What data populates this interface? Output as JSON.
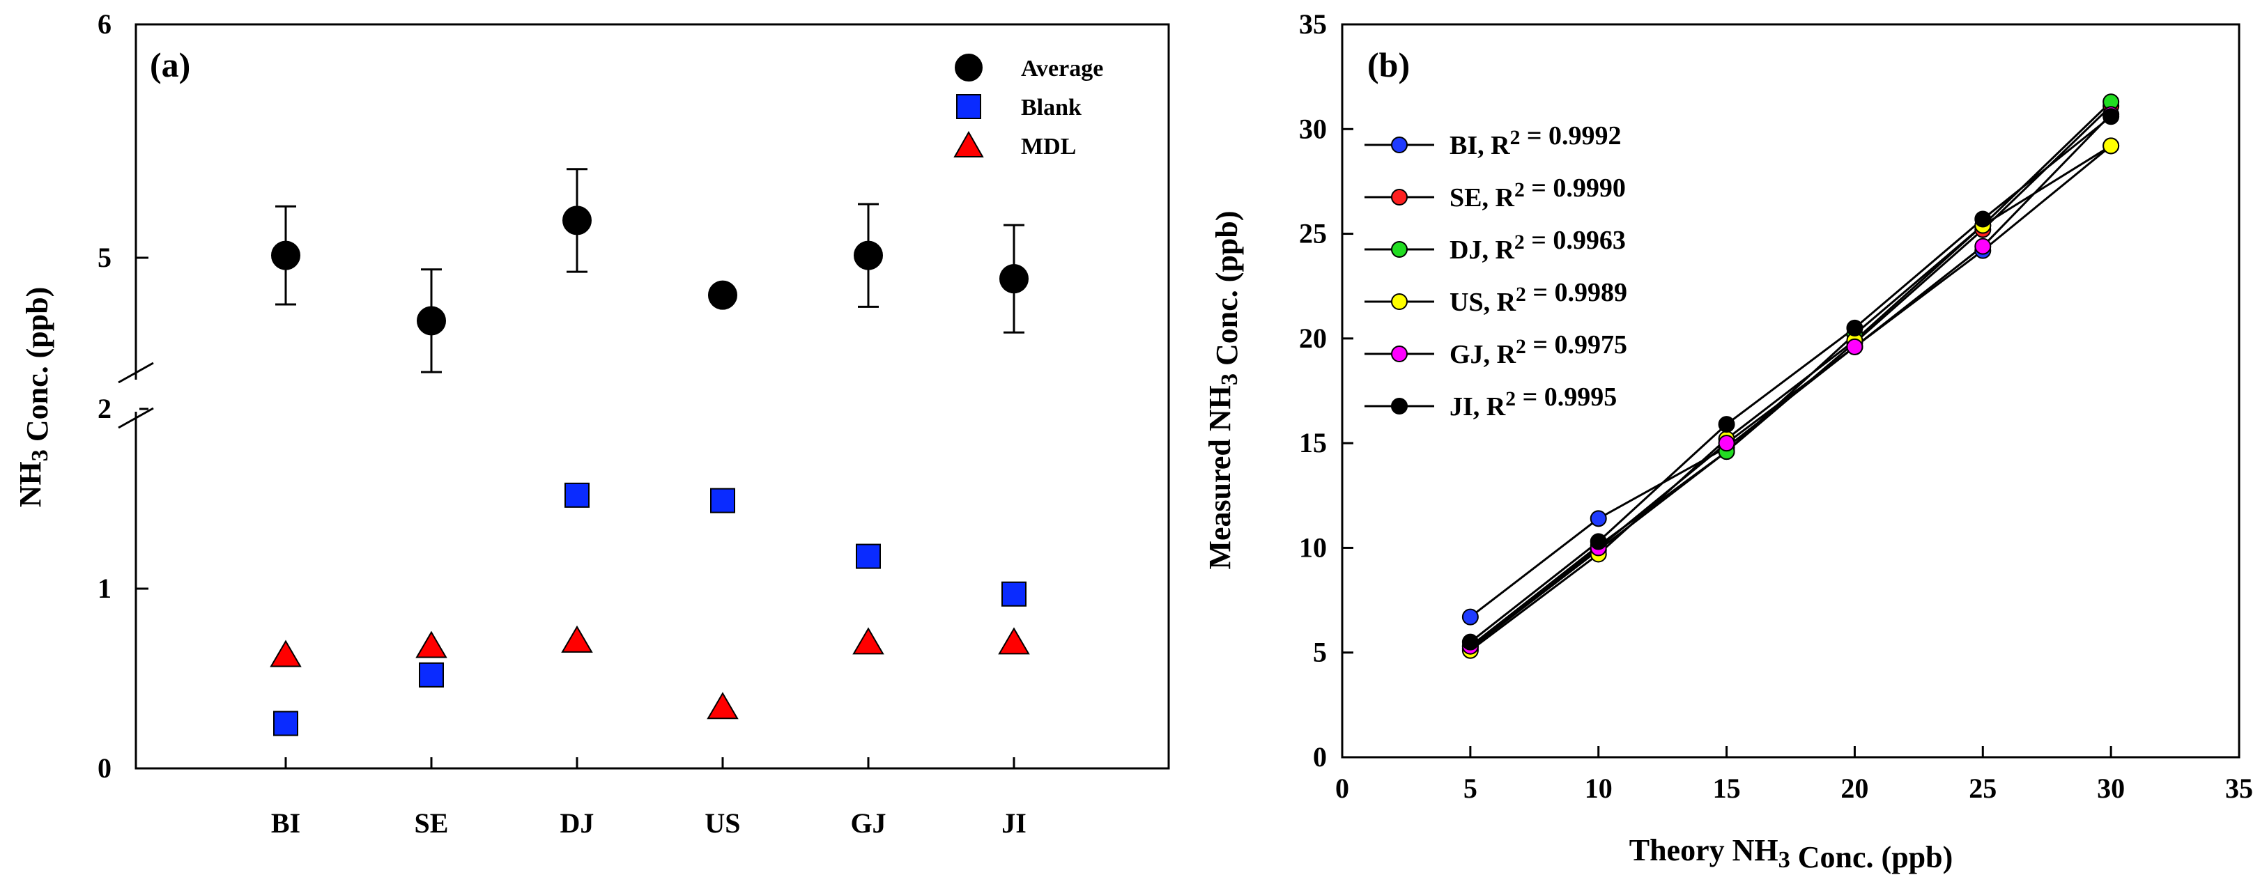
{
  "chart_data": [
    {
      "type": "scatter",
      "panel_label": "(a)",
      "ylabel": "NH3 Conc. (ppb)",
      "categories": [
        "BI",
        "SE",
        "DJ",
        "US",
        "GJ",
        "JI"
      ],
      "y_axis": {
        "broken": true,
        "lower_range": [
          0,
          2
        ],
        "upper_range": [
          4.2,
          6
        ],
        "ticks": [
          "0",
          "1",
          "2",
          "5",
          "6"
        ]
      },
      "series": [
        {
          "name": "Average",
          "marker": "circle",
          "color": "#000000",
          "values": [
            5.01,
            4.73,
            5.16,
            4.84,
            5.01,
            4.91
          ],
          "error": [
            0.21,
            0.22,
            0.22,
            0.0,
            0.22,
            0.23
          ]
        },
        {
          "name": "Blank",
          "marker": "square",
          "color": "#0a2bff",
          "values": [
            0.25,
            0.52,
            1.52,
            1.49,
            1.18,
            0.97
          ]
        },
        {
          "name": "MDL",
          "marker": "triangle",
          "color": "#ff0000",
          "values": [
            0.63,
            0.68,
            0.71,
            0.34,
            0.7,
            0.7
          ]
        }
      ]
    },
    {
      "type": "line",
      "panel_label": "(b)",
      "xlabel": "Theory NH3 Conc. (ppb)",
      "ylabel": "Measured NH3 Conc. (ppb)",
      "xlim": [
        0,
        35
      ],
      "ylim": [
        0,
        35
      ],
      "xticks": [
        0,
        5,
        10,
        15,
        20,
        25,
        30,
        35
      ],
      "yticks": [
        0,
        5,
        10,
        15,
        20,
        25,
        30,
        35
      ],
      "x": [
        5,
        10,
        15,
        20,
        25,
        30
      ],
      "series": [
        {
          "name": "BI",
          "r2": "R2 = 0.9992",
          "color": "#1f3bff",
          "values": [
            6.7,
            11.4,
            14.8,
            19.6,
            24.2,
            29.2
          ]
        },
        {
          "name": "SE",
          "r2": "R2 = 0.9990",
          "color": "#ff2020",
          "values": [
            5.2,
            9.9,
            14.6,
            19.8,
            25.2,
            31.1
          ]
        },
        {
          "name": "DJ",
          "r2": "R2 = 0.9963",
          "color": "#22dd22",
          "values": [
            5.3,
            10.1,
            14.6,
            20.2,
            25.4,
            31.3
          ]
        },
        {
          "name": "US",
          "r2": "R2 = 0.9989",
          "color": "#ffff00",
          "values": [
            5.1,
            9.7,
            15.2,
            19.9,
            25.4,
            29.2
          ]
        },
        {
          "name": "GJ",
          "r2": "R2 = 0.9975",
          "color": "#ff00ff",
          "values": [
            5.3,
            10.0,
            15.0,
            19.6,
            24.4,
            30.7
          ]
        },
        {
          "name": "JI",
          "r2": "R2 = 0.9995",
          "color": "#000000",
          "values": [
            5.5,
            10.3,
            15.9,
            20.5,
            25.7,
            30.6
          ]
        }
      ]
    }
  ]
}
